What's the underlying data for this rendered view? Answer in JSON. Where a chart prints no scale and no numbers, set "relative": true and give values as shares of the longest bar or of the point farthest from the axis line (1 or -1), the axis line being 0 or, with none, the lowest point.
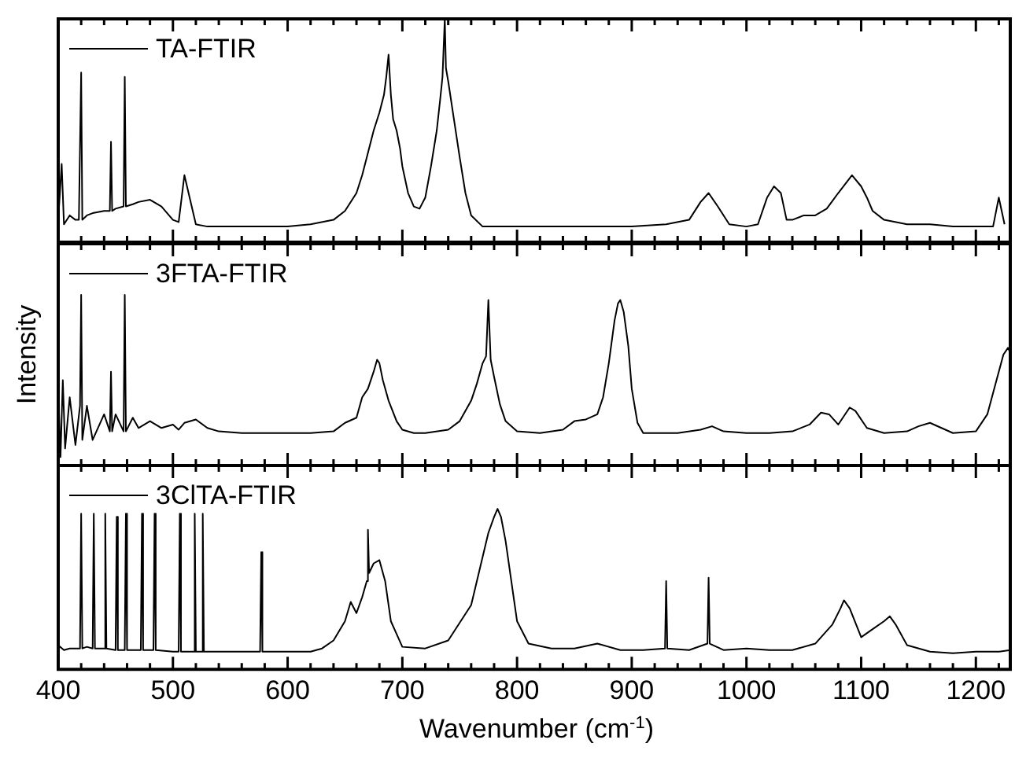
{
  "chart_data": [
    {
      "type": "line",
      "relative": true,
      "legend": "top left",
      "tick_labels": false,
      "xlim": [
        400,
        1230
      ],
      "xticks": [
        400,
        {
          "value": 420,
          "label": null
        },
        {
          "value": 440,
          "label": null
        },
        {
          "value": 460,
          "label": null
        },
        {
          "value": 480,
          "label": null
        },
        500,
        {
          "value": 520,
          "label": null
        },
        {
          "value": 540,
          "label": null
        },
        {
          "value": 560,
          "label": null
        },
        {
          "value": 580,
          "label": null
        },
        600,
        {
          "value": 620,
          "label": null
        },
        {
          "value": 640,
          "label": null
        },
        {
          "value": 660,
          "label": null
        },
        {
          "value": 680,
          "label": null
        },
        700,
        {
          "value": 720,
          "label": null
        },
        {
          "value": 740,
          "label": null
        },
        {
          "value": 760,
          "label": null
        },
        {
          "value": 780,
          "label": null
        },
        800,
        {
          "value": 820,
          "label": null
        },
        {
          "value": 840,
          "label": null
        },
        {
          "value": 860,
          "label": null
        },
        {
          "value": 880,
          "label": null
        },
        900,
        {
          "value": 920,
          "label": null
        },
        {
          "value": 940,
          "label": null
        },
        {
          "value": 960,
          "label": null
        },
        {
          "value": 980,
          "label": null
        },
        1000,
        {
          "value": 1020,
          "label": null
        },
        {
          "value": 1040,
          "label": null
        },
        {
          "value": 1060,
          "label": null
        },
        {
          "value": 1080,
          "label": null
        },
        1100,
        {
          "value": 1120,
          "label": null
        },
        {
          "value": 1140,
          "label": null
        },
        {
          "value": 1160,
          "label": null
        },
        {
          "value": 1180,
          "label": null
        },
        1200,
        {
          "value": 1220,
          "label": null
        }
      ],
      "series": [
        {
          "name": "TA-FTIR",
          "color": "#000000",
          "x": [
            400,
            403,
            405,
            410,
            415,
            418,
            419,
            420,
            421,
            425,
            430,
            440,
            445,
            446,
            447,
            450,
            457,
            458,
            459,
            465,
            470,
            480,
            490,
            500,
            505,
            510,
            520,
            530,
            540,
            560,
            580,
            600,
            620,
            640,
            650,
            660,
            665,
            670,
            675,
            680,
            684,
            686,
            688,
            690,
            692,
            695,
            698,
            700,
            705,
            710,
            715,
            720,
            725,
            730,
            733,
            735,
            737,
            738,
            740,
            745,
            750,
            755,
            760,
            770,
            780,
            800,
            850,
            900,
            930,
            950,
            960,
            967,
            975,
            985,
            1000,
            1010,
            1018,
            1024,
            1030,
            1035,
            1040,
            1050,
            1060,
            1070,
            1080,
            1092,
            1100,
            1105,
            1110,
            1120,
            1140,
            1160,
            1180,
            1200,
            1215,
            1220,
            1225
          ],
          "values": [
            0.1,
            0.35,
            0.08,
            0.12,
            0.1,
            0.1,
            0.1,
            0.76,
            0.1,
            0.12,
            0.13,
            0.14,
            0.14,
            0.45,
            0.14,
            0.15,
            0.16,
            0.74,
            0.16,
            0.17,
            0.18,
            0.19,
            0.16,
            0.1,
            0.09,
            0.3,
            0.08,
            0.07,
            0.07,
            0.07,
            0.07,
            0.07,
            0.08,
            0.1,
            0.14,
            0.22,
            0.3,
            0.4,
            0.5,
            0.58,
            0.66,
            0.74,
            0.84,
            0.66,
            0.55,
            0.5,
            0.42,
            0.34,
            0.22,
            0.16,
            0.15,
            0.2,
            0.34,
            0.5,
            0.64,
            0.74,
            1.0,
            0.78,
            0.72,
            0.55,
            0.38,
            0.22,
            0.12,
            0.07,
            0.07,
            0.07,
            0.07,
            0.07,
            0.08,
            0.1,
            0.18,
            0.22,
            0.16,
            0.08,
            0.07,
            0.08,
            0.2,
            0.25,
            0.22,
            0.1,
            0.1,
            0.12,
            0.12,
            0.15,
            0.22,
            0.3,
            0.25,
            0.2,
            0.14,
            0.1,
            0.08,
            0.08,
            0.07,
            0.07,
            0.07,
            0.2,
            0.08
          ]
        }
      ]
    },
    {
      "type": "line",
      "relative": true,
      "legend": "top left",
      "tick_labels": false,
      "ylabel": "Intensity",
      "xlim": [
        400,
        1230
      ],
      "xticks": [
        400,
        {
          "value": 420,
          "label": null
        },
        {
          "value": 440,
          "label": null
        },
        {
          "value": 460,
          "label": null
        },
        {
          "value": 480,
          "label": null
        },
        500,
        {
          "value": 520,
          "label": null
        },
        {
          "value": 540,
          "label": null
        },
        {
          "value": 560,
          "label": null
        },
        {
          "value": 580,
          "label": null
        },
        600,
        {
          "value": 620,
          "label": null
        },
        {
          "value": 640,
          "label": null
        },
        {
          "value": 660,
          "label": null
        },
        {
          "value": 680,
          "label": null
        },
        700,
        {
          "value": 720,
          "label": null
        },
        {
          "value": 740,
          "label": null
        },
        {
          "value": 760,
          "label": null
        },
        {
          "value": 780,
          "label": null
        },
        800,
        {
          "value": 820,
          "label": null
        },
        {
          "value": 840,
          "label": null
        },
        {
          "value": 860,
          "label": null
        },
        {
          "value": 880,
          "label": null
        },
        900,
        {
          "value": 920,
          "label": null
        },
        {
          "value": 940,
          "label": null
        },
        {
          "value": 960,
          "label": null
        },
        {
          "value": 980,
          "label": null
        },
        1000,
        {
          "value": 1020,
          "label": null
        },
        {
          "value": 1040,
          "label": null
        },
        {
          "value": 1060,
          "label": null
        },
        {
          "value": 1080,
          "label": null
        },
        1100,
        {
          "value": 1120,
          "label": null
        },
        {
          "value": 1140,
          "label": null
        },
        {
          "value": 1160,
          "label": null
        },
        {
          "value": 1180,
          "label": null
        },
        1200,
        {
          "value": 1220,
          "label": null
        }
      ],
      "series": [
        {
          "name": "3FTA-FTIR",
          "color": "#000000",
          "x": [
            400,
            402,
            404,
            406,
            410,
            415,
            419,
            420,
            421,
            425,
            430,
            440,
            445,
            446,
            447,
            450,
            457,
            458,
            459,
            465,
            470,
            480,
            490,
            500,
            505,
            510,
            520,
            530,
            540,
            560,
            580,
            600,
            620,
            640,
            650,
            660,
            665,
            670,
            675,
            678,
            680,
            683,
            688,
            695,
            700,
            710,
            720,
            740,
            750,
            760,
            765,
            770,
            773,
            775,
            777,
            780,
            785,
            790,
            800,
            820,
            840,
            850,
            860,
            870,
            875,
            880,
            885,
            888,
            890,
            893,
            897,
            900,
            905,
            910,
            920,
            940,
            960,
            970,
            980,
            1000,
            1020,
            1040,
            1055,
            1065,
            1072,
            1080,
            1090,
            1095,
            1105,
            1120,
            1140,
            1150,
            1160,
            1170,
            1180,
            1200,
            1210,
            1218,
            1224,
            1228,
            1230
          ],
          "values": [
            0.45,
            0.05,
            0.5,
            0.1,
            0.4,
            0.12,
            0.35,
            1.0,
            0.15,
            0.35,
            0.15,
            0.3,
            0.2,
            0.55,
            0.2,
            0.3,
            0.2,
            1.0,
            0.2,
            0.28,
            0.22,
            0.26,
            0.22,
            0.24,
            0.21,
            0.25,
            0.27,
            0.22,
            0.2,
            0.19,
            0.19,
            0.19,
            0.19,
            0.2,
            0.25,
            0.28,
            0.4,
            0.45,
            0.55,
            0.62,
            0.6,
            0.5,
            0.38,
            0.26,
            0.21,
            0.19,
            0.19,
            0.21,
            0.26,
            0.38,
            0.48,
            0.6,
            0.64,
            0.97,
            0.62,
            0.52,
            0.36,
            0.26,
            0.2,
            0.19,
            0.21,
            0.26,
            0.27,
            0.3,
            0.4,
            0.6,
            0.85,
            0.95,
            0.97,
            0.9,
            0.7,
            0.45,
            0.25,
            0.19,
            0.19,
            0.19,
            0.21,
            0.23,
            0.2,
            0.19,
            0.19,
            0.2,
            0.24,
            0.31,
            0.3,
            0.24,
            0.34,
            0.32,
            0.22,
            0.19,
            0.2,
            0.23,
            0.25,
            0.22,
            0.19,
            0.2,
            0.3,
            0.5,
            0.65,
            0.69,
            0.66
          ]
        }
      ]
    },
    {
      "type": "line",
      "relative": true,
      "legend": "top left",
      "tick_labels": "x",
      "xlabel": "Wavenumber (cm$^{-1}$)",
      "xlim": [
        400,
        1230
      ],
      "xticks": [
        400,
        {
          "value": 420,
          "label": null
        },
        {
          "value": 440,
          "label": null
        },
        {
          "value": 460,
          "label": null
        },
        {
          "value": 480,
          "label": null
        },
        500,
        {
          "value": 520,
          "label": null
        },
        {
          "value": 540,
          "label": null
        },
        {
          "value": 560,
          "label": null
        },
        {
          "value": 580,
          "label": null
        },
        600,
        {
          "value": 620,
          "label": null
        },
        {
          "value": 640,
          "label": null
        },
        {
          "value": 660,
          "label": null
        },
        {
          "value": 680,
          "label": null
        },
        700,
        {
          "value": 720,
          "label": null
        },
        {
          "value": 740,
          "label": null
        },
        {
          "value": 760,
          "label": null
        },
        {
          "value": 780,
          "label": null
        },
        800,
        {
          "value": 820,
          "label": null
        },
        {
          "value": 840,
          "label": null
        },
        {
          "value": 860,
          "label": null
        },
        {
          "value": 880,
          "label": null
        },
        900,
        {
          "value": 920,
          "label": null
        },
        {
          "value": 940,
          "label": null
        },
        {
          "value": 960,
          "label": null
        },
        {
          "value": 980,
          "label": null
        },
        1000,
        {
          "value": 1020,
          "label": null
        },
        {
          "value": 1040,
          "label": null
        },
        {
          "value": 1060,
          "label": null
        },
        {
          "value": 1080,
          "label": null
        },
        1100,
        {
          "value": 1120,
          "label": null
        },
        {
          "value": 1140,
          "label": null
        },
        {
          "value": 1160,
          "label": null
        },
        {
          "value": 1180,
          "label": null
        },
        1200,
        {
          "value": 1220,
          "label": null
        }
      ],
      "series": [
        {
          "name": "3ClTA-FTIR",
          "color": "#000000",
          "x": [
            400,
            405,
            410,
            419,
            420,
            421,
            425,
            430,
            431,
            432,
            440,
            441,
            442,
            450,
            451,
            452,
            458,
            459,
            460,
            472,
            473,
            474,
            483,
            484,
            485,
            500,
            505,
            506,
            507,
            518,
            519,
            520,
            525,
            526,
            527,
            540,
            560,
            576,
            577,
            578,
            600,
            620,
            630,
            640,
            650,
            655,
            660,
            665,
            669,
            670,
            671,
            675,
            680,
            685,
            690,
            700,
            720,
            740,
            760,
            770,
            775,
            780,
            783,
            786,
            790,
            795,
            800,
            810,
            830,
            850,
            870,
            890,
            910,
            929,
            930,
            931,
            950,
            966,
            967,
            968,
            980,
            1000,
            1020,
            1040,
            1060,
            1075,
            1082,
            1085,
            1090,
            1100,
            1110,
            1120,
            1125,
            1130,
            1140,
            1160,
            1180,
            1200,
            1220,
            1230
          ],
          "values": [
            0.15,
            0.12,
            0.13,
            0.13,
            0.97,
            0.13,
            0.14,
            0.13,
            0.97,
            0.13,
            0.13,
            0.97,
            0.13,
            0.12,
            0.95,
            0.12,
            0.12,
            0.97,
            0.12,
            0.12,
            0.97,
            0.12,
            0.12,
            0.97,
            0.12,
            0.11,
            0.11,
            0.97,
            0.11,
            0.11,
            0.97,
            0.11,
            0.11,
            0.97,
            0.11,
            0.11,
            0.11,
            0.11,
            0.73,
            0.11,
            0.11,
            0.11,
            0.13,
            0.18,
            0.3,
            0.42,
            0.35,
            0.45,
            0.55,
            0.87,
            0.6,
            0.66,
            0.68,
            0.55,
            0.3,
            0.14,
            0.13,
            0.18,
            0.4,
            0.7,
            0.85,
            0.95,
            1.0,
            0.95,
            0.8,
            0.55,
            0.3,
            0.16,
            0.13,
            0.13,
            0.16,
            0.12,
            0.12,
            0.13,
            0.55,
            0.13,
            0.12,
            0.16,
            0.57,
            0.16,
            0.12,
            0.13,
            0.12,
            0.12,
            0.16,
            0.28,
            0.38,
            0.43,
            0.38,
            0.2,
            0.25,
            0.3,
            0.33,
            0.28,
            0.15,
            0.11,
            0.1,
            0.11,
            0.11,
            0.12
          ]
        }
      ]
    }
  ]
}
